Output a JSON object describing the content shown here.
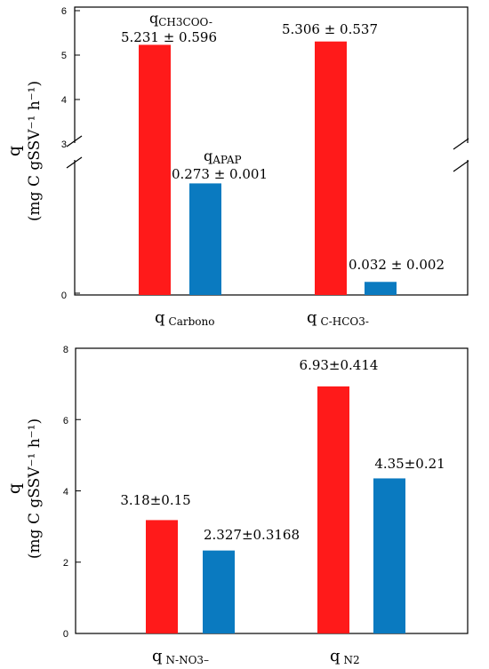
{
  "colors": {
    "red": "#ff1a1a",
    "blue": "#0a7ac0"
  },
  "chart_data": [
    {
      "type": "bar",
      "broken_axis": true,
      "y_segments": [
        [
          0,
          0.5
        ],
        [
          3,
          6
        ]
      ],
      "ylabel_line1": "q",
      "ylabel_line2": "(mg C gSSV⁻¹ h⁻¹)",
      "yticks": [
        "0",
        "3",
        "4",
        "5",
        "6"
      ],
      "categories": [
        {
          "main": "q",
          "sub": "Carbono"
        },
        {
          "main": "q",
          "sub": "C-HCO3-"
        }
      ],
      "series": [
        {
          "color": "red",
          "values": [
            5.231,
            5.306
          ],
          "labels": [
            "5.231 ± 0.596",
            "5.306 ± 0.537"
          ]
        },
        {
          "color": "blue",
          "values": [
            0.273,
            0.032
          ],
          "labels": [
            "0.273 ± 0.001",
            "0.032 ± 0.002"
          ]
        }
      ],
      "annotations": [
        {
          "main": "q",
          "sub": "CH3COO-"
        },
        {
          "main": "q",
          "sub": "APAP"
        }
      ]
    },
    {
      "type": "bar",
      "ylabel_line1": "q",
      "ylabel_line2": "(mg C gSSV⁻¹ h⁻¹)",
      "ylim": [
        0,
        8
      ],
      "yticks": [
        "0",
        "2",
        "4",
        "6",
        "8"
      ],
      "categories": [
        {
          "main": "q",
          "sub": "N-NO3–"
        },
        {
          "main": "q",
          "sub": "N2"
        }
      ],
      "series": [
        {
          "color": "red",
          "values": [
            3.18,
            6.93
          ],
          "labels": [
            "3.18±0.15",
            "6.93±0.414"
          ]
        },
        {
          "color": "blue",
          "values": [
            2.327,
            4.35
          ],
          "labels": [
            "2.327±0.3168",
            "4.35±0.21"
          ]
        }
      ]
    }
  ]
}
